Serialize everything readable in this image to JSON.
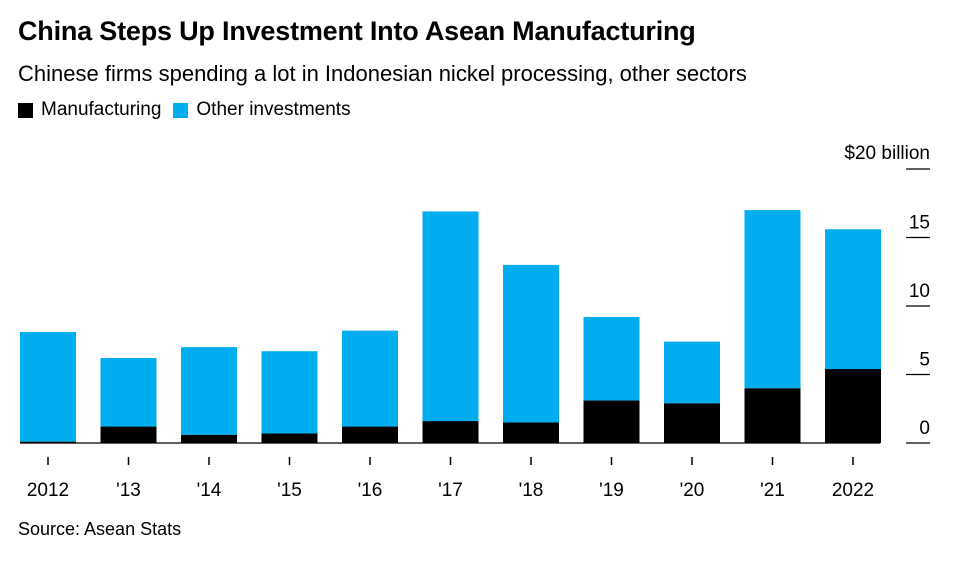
{
  "title": "China Steps Up Investment Into Asean Manufacturing",
  "subtitle": "Chinese firms spending a lot in Indonesian nickel processing, other sectors",
  "source": "Source: Asean Stats",
  "colors": {
    "manufacturing": "#000000",
    "other": "#00aeef",
    "axis": "#000000"
  },
  "chart_data": {
    "type": "bar",
    "stacked": true,
    "categories": [
      "2012",
      "'13",
      "'14",
      "'15",
      "'16",
      "'17",
      "'18",
      "'19",
      "'20",
      "'21",
      "2022"
    ],
    "series": [
      {
        "name": "Manufacturing",
        "values": [
          0.1,
          1.2,
          0.6,
          0.7,
          1.2,
          1.6,
          1.5,
          3.1,
          2.9,
          4.0,
          5.4
        ]
      },
      {
        "name": "Other investments",
        "values": [
          8.0,
          5.0,
          6.4,
          6.0,
          7.0,
          15.3,
          11.5,
          6.1,
          4.5,
          13.0,
          10.2
        ]
      }
    ],
    "y_unit_label": "$20 billion",
    "yticks": [
      0,
      5,
      10,
      15
    ],
    "ylim": [
      0,
      20
    ],
    "ylabel": "",
    "xlabel": "",
    "legend_position": "top-left",
    "grid": false
  }
}
